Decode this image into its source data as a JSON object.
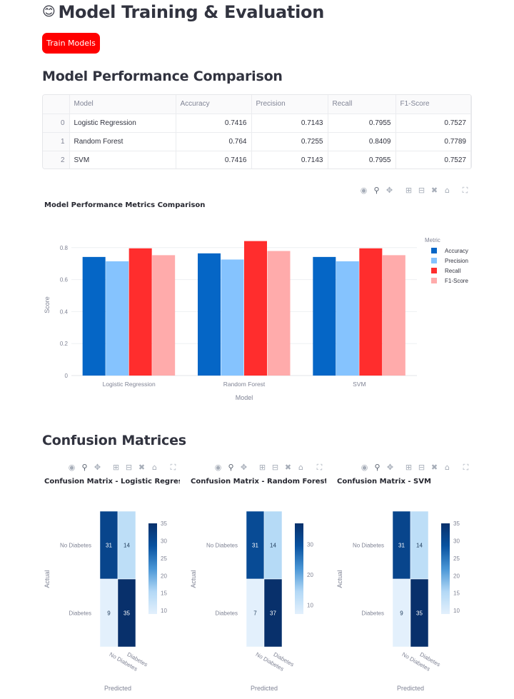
{
  "page": {
    "title_emoji": "😊",
    "title": "Model Training & Evaluation",
    "train_button": "Train Models",
    "performance_heading": "Model Performance Comparison",
    "confusion_heading": "Confusion Matrices"
  },
  "table": {
    "columns": [
      "",
      "Model",
      "Accuracy",
      "Precision",
      "Recall",
      "F1-Score"
    ],
    "rows": [
      [
        "0",
        "Logistic Regression",
        "0.7416",
        "0.7143",
        "0.7955",
        "0.7527"
      ],
      [
        "1",
        "Random Forest",
        "0.764",
        "0.7255",
        "0.8409",
        "0.7789"
      ],
      [
        "2",
        "SVM",
        "0.7416",
        "0.7143",
        "0.7955",
        "0.7527"
      ]
    ]
  },
  "modebar_icons": [
    "camera-icon",
    "zoom-icon",
    "pan-icon",
    "zoom-in-icon",
    "zoom-out-icon",
    "autoscale-icon",
    "reset-axes-icon",
    "fullscreen-icon"
  ],
  "colors": {
    "accent": "#ff0000",
    "Accuracy": "#0566c6",
    "Precision": "#85c3fe",
    "Recall": "#ff2d2d",
    "F1-Score": "#ffabab"
  },
  "chart_data": [
    {
      "type": "bar",
      "title": "Model Performance Metrics Comparison",
      "categories": [
        "Logistic Regression",
        "Random Forest",
        "SVM"
      ],
      "series": [
        {
          "name": "Accuracy",
          "values": [
            0.7416,
            0.764,
            0.7416
          ]
        },
        {
          "name": "Precision",
          "values": [
            0.7143,
            0.7255,
            0.7143
          ]
        },
        {
          "name": "Recall",
          "values": [
            0.7955,
            0.8409,
            0.7955
          ]
        },
        {
          "name": "F1-Score",
          "values": [
            0.7527,
            0.7789,
            0.7527
          ]
        }
      ],
      "xlabel": "Model",
      "ylabel": "Score",
      "ylim": [
        0,
        0.88
      ],
      "yticks": [
        "0",
        "0.2",
        "0.4",
        "0.6",
        "0.8"
      ],
      "legend_title": "Metric",
      "legend_position": "right",
      "grid": true
    },
    {
      "type": "heatmap",
      "title": "Confusion Matrix - Logistic Regressio",
      "rows": [
        "No Diabetes",
        "Diabetes"
      ],
      "cols": [
        "No Diabetes",
        "Diabetes"
      ],
      "values": [
        [
          31,
          14
        ],
        [
          9,
          35
        ]
      ],
      "xlabel": "Predicted",
      "ylabel": "Actual",
      "colorbar_ticks": [
        "35",
        "30",
        "25",
        "20",
        "15",
        "10"
      ]
    },
    {
      "type": "heatmap",
      "title": "Confusion Matrix - Random Forest",
      "rows": [
        "No Diabetes",
        "Diabetes"
      ],
      "cols": [
        "No Diabetes",
        "Diabetes"
      ],
      "values": [
        [
          31,
          14
        ],
        [
          7,
          37
        ]
      ],
      "xlabel": "Predicted",
      "ylabel": "Actual",
      "colorbar_ticks": [
        "30",
        "20",
        "10"
      ]
    },
    {
      "type": "heatmap",
      "title": "Confusion Matrix - SVM",
      "rows": [
        "No Diabetes",
        "Diabetes"
      ],
      "cols": [
        "No Diabetes",
        "Diabetes"
      ],
      "values": [
        [
          31,
          14
        ],
        [
          9,
          35
        ]
      ],
      "xlabel": "Predicted",
      "ylabel": "Actual",
      "colorbar_ticks": [
        "35",
        "30",
        "25",
        "20",
        "15",
        "10"
      ]
    }
  ]
}
